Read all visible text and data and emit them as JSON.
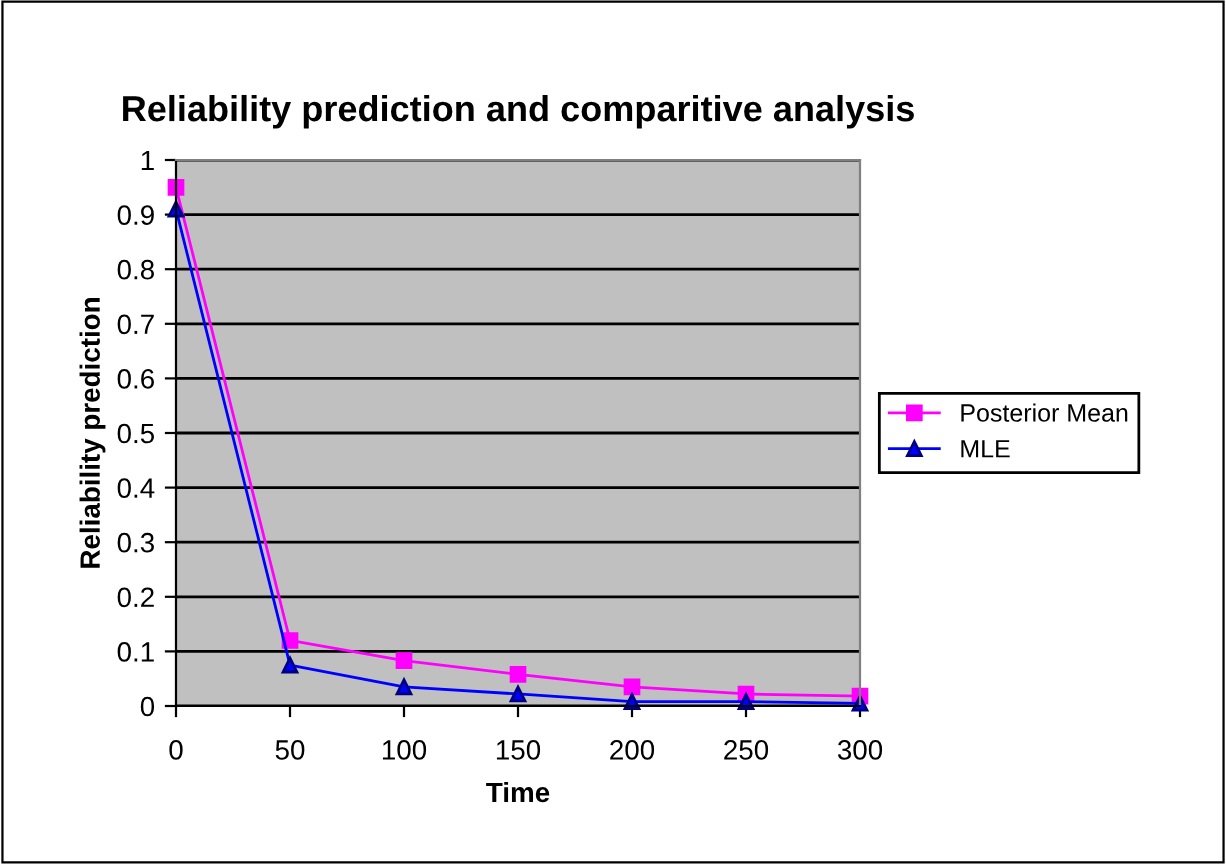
{
  "chart_data": {
    "type": "line",
    "title": "Reliability prediction and comparitive analysis",
    "xlabel": "Time",
    "ylabel": "Reliability prediction",
    "x": [
      0,
      50,
      100,
      150,
      200,
      250,
      300
    ],
    "series": [
      {
        "name": "Posterior Mean",
        "color": "#ff00ff",
        "marker": "square",
        "values": [
          0.95,
          0.12,
          0.083,
          0.058,
          0.035,
          0.022,
          0.018
        ]
      },
      {
        "name": "MLE",
        "color": "#0000ff",
        "marker": "triangle",
        "values": [
          0.91,
          0.075,
          0.035,
          0.022,
          0.008,
          0.008,
          0.005
        ]
      }
    ],
    "xlim": [
      0,
      300
    ],
    "xticks": [
      0,
      50,
      100,
      150,
      200,
      250,
      300
    ],
    "ylim": [
      0,
      1
    ],
    "yticks": [
      0,
      0.1,
      0.2,
      0.3,
      0.4,
      0.5,
      0.6,
      0.7,
      0.8,
      0.9,
      1
    ],
    "grid": "y",
    "legend": "right"
  }
}
